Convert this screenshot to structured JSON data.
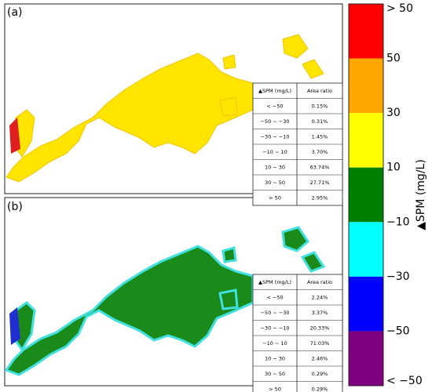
{
  "panels": [
    {
      "label": "(a)",
      "table": {
        "header": [
          "▲SPM (mg/L)",
          "Area ratio"
        ],
        "rows": [
          [
            "< −50",
            "0.15%"
          ],
          [
            "−50 ~ −30",
            "0.31%"
          ],
          [
            "−30 ~ −10",
            "1.45%"
          ],
          [
            "−10 ~ 10",
            "3.70%"
          ],
          [
            "10 ~ 30",
            "63.74%"
          ],
          [
            "30 ~ 50",
            "27.71%"
          ],
          [
            "> 50",
            "2.95%"
          ]
        ]
      }
    },
    {
      "label": "(b)",
      "table": {
        "header": [
          "▲SPM (mg/L)",
          "Area ratio"
        ],
        "rows": [
          [
            "< −50",
            "2.24%"
          ],
          [
            "−50 ~ −30",
            "3.37%"
          ],
          [
            "−30 ~ −10",
            "20.33%"
          ],
          [
            "−10 ~ 10",
            "71.03%"
          ],
          [
            "10 ~ 30",
            "2.46%"
          ],
          [
            "30 ~ 50",
            "0.29%"
          ],
          [
            "> 50",
            "0.29%"
          ]
        ]
      }
    }
  ],
  "colorbar": {
    "title": "▲SPM (mg/L)",
    "labels": [
      "> 50",
      "50",
      "30",
      "10",
      "−10",
      "−30",
      "−50",
      "< −50"
    ],
    "colors": [
      "#ff0000",
      "#ffa500",
      "#ffff00",
      "#008000",
      "#00ffff",
      "#0000ff",
      "#800080"
    ]
  }
}
